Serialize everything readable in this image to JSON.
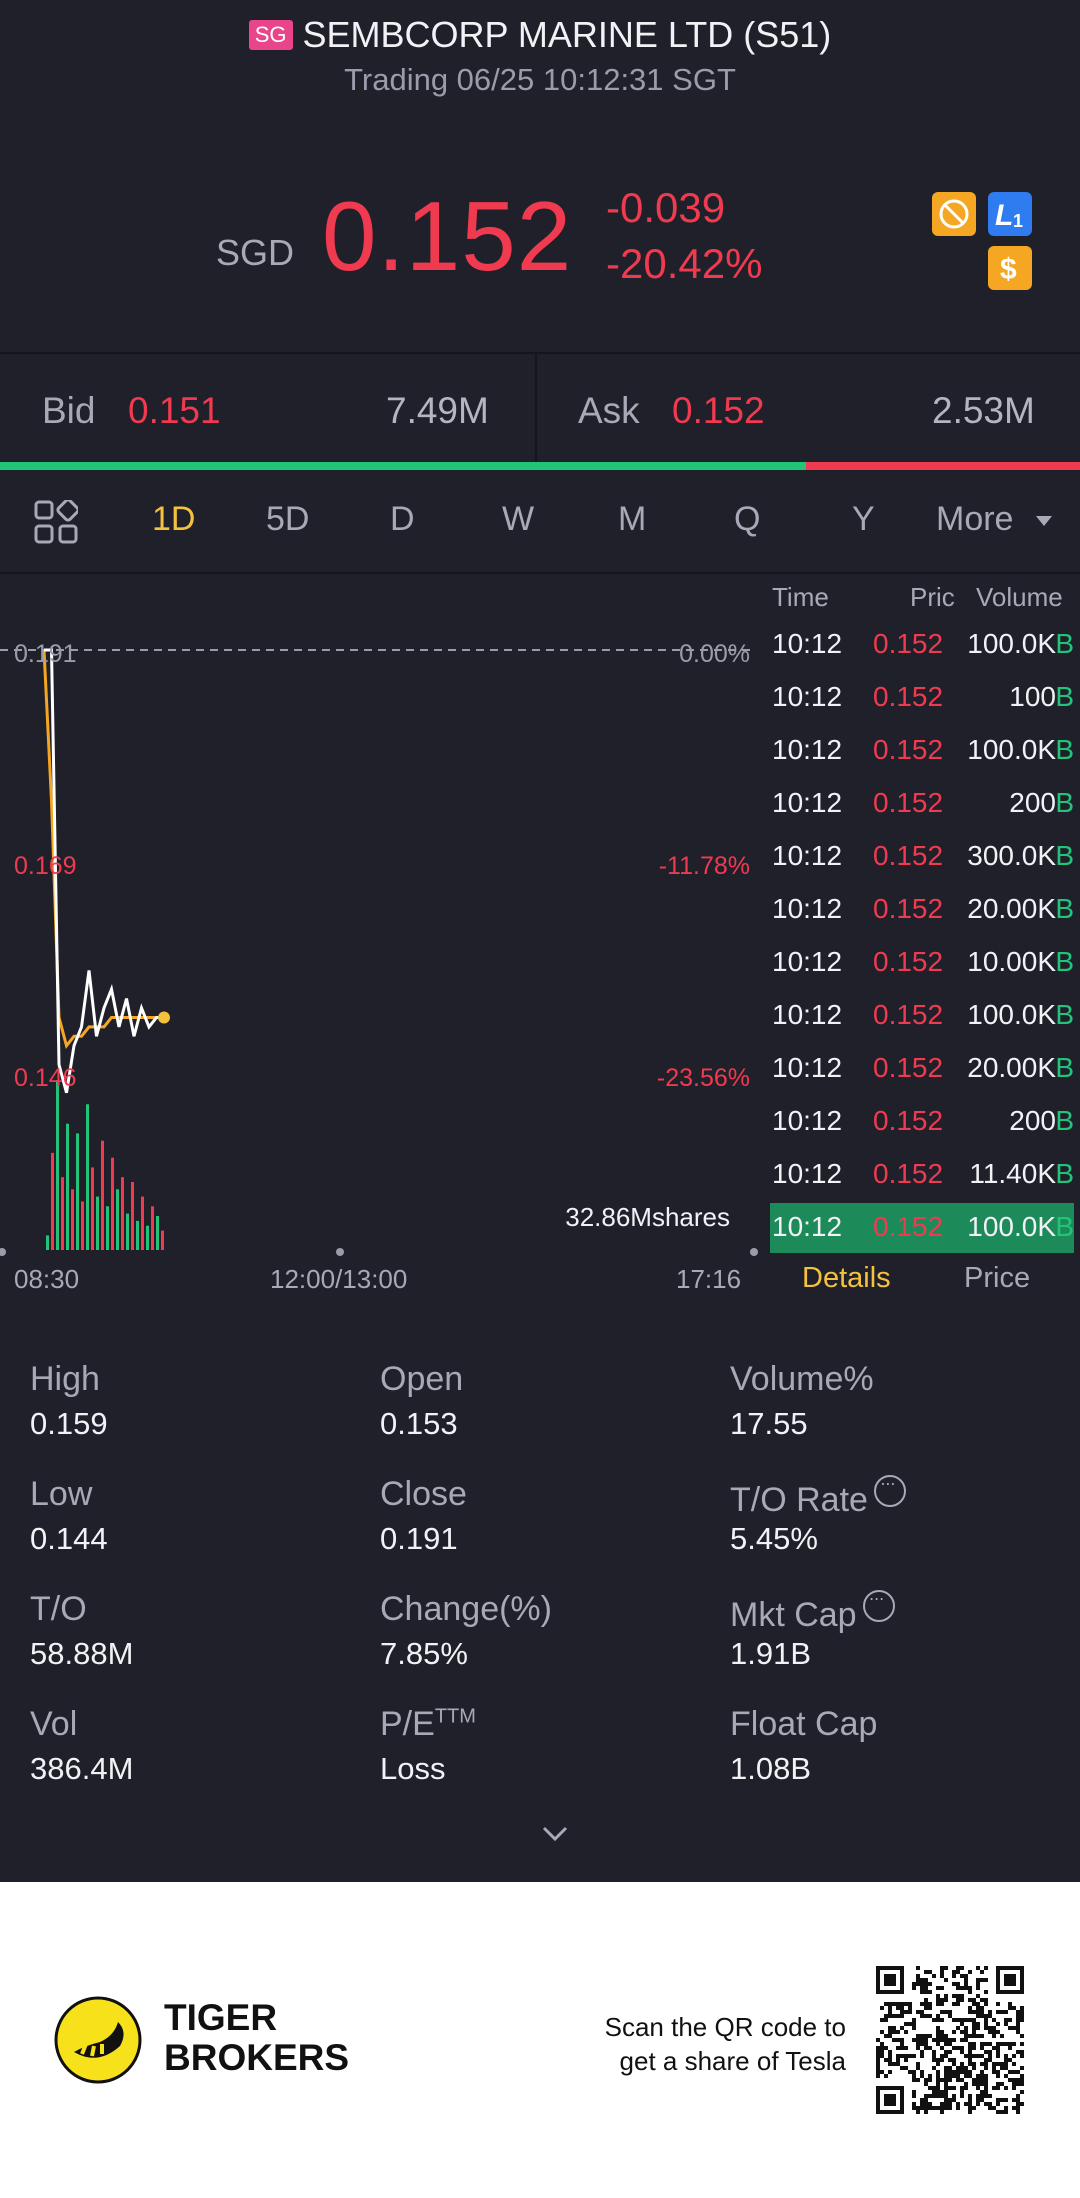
{
  "header": {
    "market_badge": "SG",
    "title": "SEMBCORP MARINE LTD (S51)",
    "status": "Trading 06/25 10:12:31 SGT",
    "currency": "SGD",
    "price": "0.152",
    "change": "-0.039",
    "change_pct": "-20.42%"
  },
  "icons": [
    "no-short-icon",
    "level1-icon",
    "dollar-icon"
  ],
  "bid_ask": {
    "bid_label": "Bid",
    "bid_price": "0.151",
    "bid_volume": "7.49M",
    "ask_label": "Ask",
    "ask_price": "0.152",
    "ask_volume": "2.53M",
    "bid_share": 0.746
  },
  "periods": {
    "items": [
      "1D",
      "5D",
      "D",
      "W",
      "M",
      "Q",
      "Y"
    ],
    "more": "More",
    "active": "1D"
  },
  "chart": {
    "y_left": [
      "0.191",
      "0.169",
      "0.146"
    ],
    "y_right": [
      "0.00%",
      "-11.78%",
      "-23.56%"
    ],
    "x_labels": [
      "08:30",
      "12:00/13:00",
      "17:16"
    ],
    "volume_label": "32.86Mshares",
    "prev_close": 0.191
  },
  "chart_data": {
    "type": "line",
    "series": [
      {
        "values": [
          0.191,
          0.191,
          0.147,
          0.144,
          0.149,
          0.151,
          0.157,
          0.15,
          0.153,
          0.155,
          0.151,
          0.154,
          0.15,
          0.153,
          0.151,
          0.152,
          0.152
        ]
      }
    ],
    "avg": [
      0.191,
      0.175,
      0.152,
      0.149,
      0.15,
      0.15,
      0.151,
      0.151,
      0.151,
      0.152,
      0.152,
      0.152,
      0.152,
      0.152,
      0.152,
      0.152,
      0.152
    ],
    "volume": [
      6,
      40,
      70,
      30,
      52,
      25,
      48,
      20,
      60,
      34,
      22,
      45,
      18,
      38,
      25,
      30,
      15,
      28,
      12,
      22,
      10,
      18,
      14,
      8
    ],
    "ylim": [
      0.146,
      0.191
    ]
  },
  "ticks_table": {
    "headers": [
      "Time",
      "Pric",
      "Volume"
    ],
    "rows": [
      {
        "time": "10:12",
        "price": "0.152",
        "volume": "100.0K",
        "side": "B"
      },
      {
        "time": "10:12",
        "price": "0.152",
        "volume": "100",
        "side": "B"
      },
      {
        "time": "10:12",
        "price": "0.152",
        "volume": "100.0K",
        "side": "B"
      },
      {
        "time": "10:12",
        "price": "0.152",
        "volume": "200",
        "side": "B"
      },
      {
        "time": "10:12",
        "price": "0.152",
        "volume": "300.0K",
        "side": "B"
      },
      {
        "time": "10:12",
        "price": "0.152",
        "volume": "20.00K",
        "side": "B"
      },
      {
        "time": "10:12",
        "price": "0.152",
        "volume": "10.00K",
        "side": "B"
      },
      {
        "time": "10:12",
        "price": "0.152",
        "volume": "100.0K",
        "side": "B"
      },
      {
        "time": "10:12",
        "price": "0.152",
        "volume": "20.00K",
        "side": "B"
      },
      {
        "time": "10:12",
        "price": "0.152",
        "volume": "200",
        "side": "B"
      },
      {
        "time": "10:12",
        "price": "0.152",
        "volume": "11.40K",
        "side": "B"
      },
      {
        "time": "10:12",
        "price": "0.152",
        "volume": "100.0K",
        "side": "B"
      }
    ],
    "tab_details": "Details",
    "tab_price": "Price"
  },
  "stats": [
    {
      "label": "High",
      "value": "0.159"
    },
    {
      "label": "Open",
      "value": "0.153"
    },
    {
      "label": "Volume%",
      "value": "17.55"
    },
    {
      "label": "Low",
      "value": "0.144"
    },
    {
      "label": "Close",
      "value": "0.191"
    },
    {
      "label": "T/O Rate",
      "value": "5.45%"
    },
    {
      "label": "T/O",
      "value": "58.88M"
    },
    {
      "label": "Change(%)",
      "value": "7.85%"
    },
    {
      "label": "Mkt Cap",
      "value": "1.91B"
    },
    {
      "label": "Vol",
      "value": "386.4M"
    },
    {
      "label": "P/E",
      "sup": "TTM",
      "value": "Loss"
    },
    {
      "label": "Float Cap",
      "value": "1.08B"
    }
  ],
  "footer": {
    "brand_line1": "TIGER",
    "brand_line2": "BROKERS",
    "scan_line1": "Scan the QR code to",
    "scan_line2": "get a share of Tesla"
  },
  "colors": {
    "up": "#22c47a",
    "down": "#f03a50",
    "accent": "#f4c23c",
    "background": "#1f2029"
  }
}
